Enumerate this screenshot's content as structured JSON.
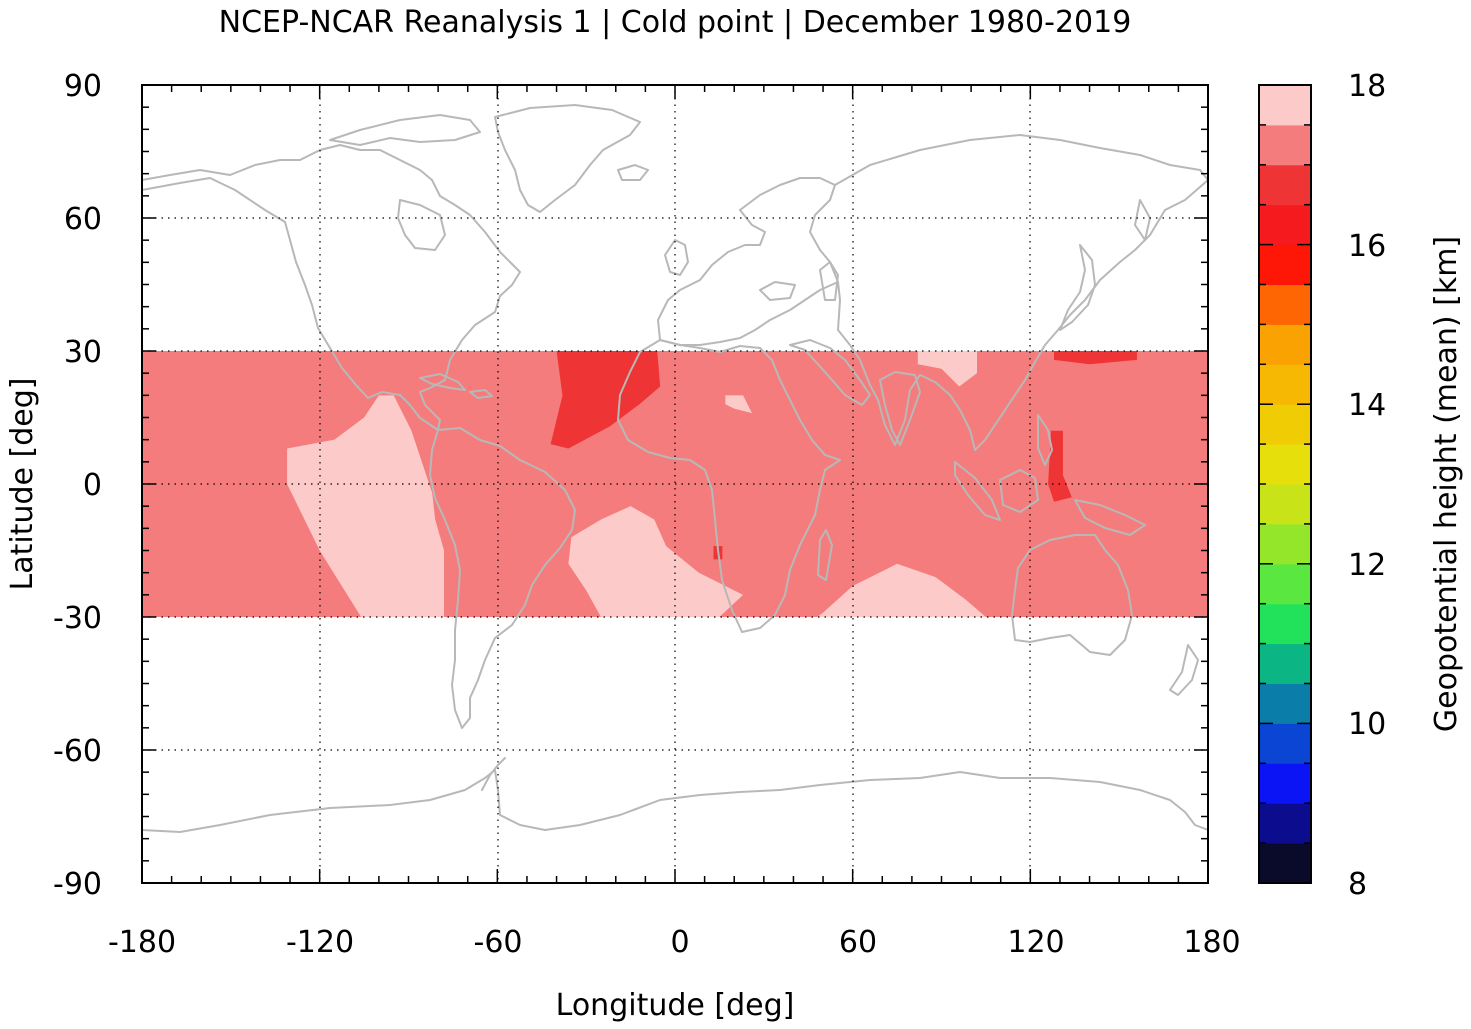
{
  "chart_data": {
    "type": "heatmap",
    "title": "NCEP-NCAR Reanalysis 1 | Cold point | December 1980-2019",
    "xlabel": "Longitude [deg]",
    "ylabel": "Latitude [deg]",
    "colorbar_label": "Geopotential height (mean) [km]",
    "xlim": [
      -180,
      180
    ],
    "ylim": [
      -90,
      90
    ],
    "xticks": [
      -180,
      -120,
      -60,
      0,
      60,
      120,
      180
    ],
    "yticks": [
      90,
      60,
      30,
      0,
      -30,
      -60,
      -90
    ],
    "colorbar_ticks": [
      18,
      16,
      14,
      12,
      10,
      8
    ],
    "colorbar_range": [
      8,
      18
    ],
    "colorbar_levels": [
      {
        "from": 8.0,
        "to": 8.5,
        "color": "#0a0a2a"
      },
      {
        "from": 8.5,
        "to": 9.0,
        "color": "#0b0d8e"
      },
      {
        "from": 9.0,
        "to": 9.5,
        "color": "#0a14f5"
      },
      {
        "from": 9.5,
        "to": 10.0,
        "color": "#0a45d4"
      },
      {
        "from": 10.0,
        "to": 10.5,
        "color": "#0a7ea8"
      },
      {
        "from": 10.5,
        "to": 11.0,
        "color": "#0cb684"
      },
      {
        "from": 11.0,
        "to": 11.5,
        "color": "#22e25c"
      },
      {
        "from": 11.5,
        "to": 12.0,
        "color": "#5ae840"
      },
      {
        "from": 12.0,
        "to": 12.5,
        "color": "#94e62a"
      },
      {
        "from": 12.5,
        "to": 13.0,
        "color": "#c8e418"
      },
      {
        "from": 13.0,
        "to": 13.5,
        "color": "#e6df0c"
      },
      {
        "from": 13.5,
        "to": 14.0,
        "color": "#f0cc04"
      },
      {
        "from": 14.0,
        "to": 14.5,
        "color": "#f6b802"
      },
      {
        "from": 14.5,
        "to": 15.0,
        "color": "#faa202"
      },
      {
        "from": 15.0,
        "to": 15.5,
        "color": "#fe6604"
      },
      {
        "from": 15.5,
        "to": 16.0,
        "color": "#fe1606"
      },
      {
        "from": 16.0,
        "to": 16.5,
        "color": "#f41a1e"
      },
      {
        "from": 16.5,
        "to": 17.0,
        "color": "#ee3434"
      },
      {
        "from": 17.0,
        "to": 17.5,
        "color": "#f47c7c"
      },
      {
        "from": 17.5,
        "to": 18.0,
        "color": "#fdcaca"
      }
    ],
    "data_band": {
      "lat_min": -30,
      "lat_max": 30,
      "background_value_km": 17.25
    },
    "regions": [
      {
        "name": "east-pacific-high",
        "value_km": 17.75,
        "polygon": [
          [
            -131,
            8
          ],
          [
            -115,
            10
          ],
          [
            -105,
            15
          ],
          [
            -100,
            20
          ],
          [
            -95,
            20
          ],
          [
            -89,
            12
          ],
          [
            -82,
            -2
          ],
          [
            -81,
            -8
          ],
          [
            -78,
            -15
          ],
          [
            -78,
            -30
          ],
          [
            -106,
            -30
          ],
          [
            -120,
            -15
          ],
          [
            -131,
            0
          ]
        ]
      },
      {
        "name": "south-atlantic-high",
        "value_km": 17.75,
        "polygon": [
          [
            -35,
            -12
          ],
          [
            -25,
            -8
          ],
          [
            -15,
            -5
          ],
          [
            -7,
            -8
          ],
          [
            -3,
            -14
          ],
          [
            8,
            -20
          ],
          [
            23,
            -25
          ],
          [
            15,
            -30
          ],
          [
            -25,
            -30
          ],
          [
            -30,
            -24
          ],
          [
            -36,
            -18
          ]
        ]
      },
      {
        "name": "indian-ocean-high",
        "value_km": 17.75,
        "polygon": [
          [
            50,
            -29
          ],
          [
            60,
            -23
          ],
          [
            75,
            -18
          ],
          [
            88,
            -21
          ],
          [
            98,
            -26
          ],
          [
            105,
            -30
          ],
          [
            48,
            -30
          ]
        ]
      },
      {
        "name": "himalaya-high",
        "value_km": 17.75,
        "polygon": [
          [
            82,
            30
          ],
          [
            102,
            30
          ],
          [
            102,
            25
          ],
          [
            96,
            22
          ],
          [
            90,
            26
          ],
          [
            82,
            27
          ]
        ]
      },
      {
        "name": "sahara-spot-high",
        "value_km": 17.75,
        "polygon": [
          [
            17,
            20
          ],
          [
            23,
            20
          ],
          [
            26,
            16
          ],
          [
            20,
            17
          ],
          [
            17,
            18
          ]
        ]
      },
      {
        "name": "west-africa-low",
        "value_km": 16.75,
        "polygon": [
          [
            -40,
            30
          ],
          [
            -6,
            30
          ],
          [
            -5,
            22
          ],
          [
            -12,
            18
          ],
          [
            -22,
            13
          ],
          [
            -36,
            8
          ],
          [
            -42,
            9
          ],
          [
            -38,
            20
          ],
          [
            -40,
            30
          ]
        ]
      },
      {
        "name": "maritime-continent-low",
        "value_km": 16.75,
        "polygon": [
          [
            127,
            12
          ],
          [
            131,
            12
          ],
          [
            131,
            2
          ],
          [
            134,
            -3
          ],
          [
            128,
            -4
          ],
          [
            126,
            0
          ]
        ]
      },
      {
        "name": "west-pacific-low",
        "value_km": 16.75,
        "polygon": [
          [
            128,
            30
          ],
          [
            156,
            30
          ],
          [
            156,
            28
          ],
          [
            140,
            27
          ],
          [
            128,
            28
          ]
        ]
      },
      {
        "name": "africa-small-low",
        "value_km": 16.75,
        "polygon": [
          [
            13,
            -14
          ],
          [
            16,
            -14
          ],
          [
            16,
            -17
          ],
          [
            13,
            -17
          ]
        ]
      }
    ],
    "grid": "dotted"
  }
}
